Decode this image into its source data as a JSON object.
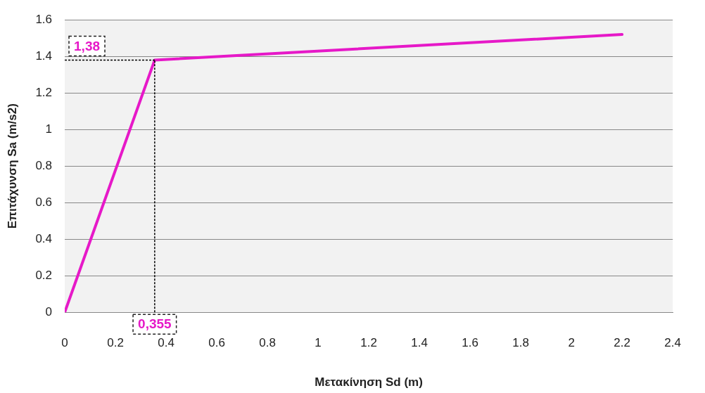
{
  "chart_data": {
    "type": "line",
    "xlabel": "Μετακίνηση Sd (m)",
    "ylabel": "Επιτάχυνση Sa (m/s2)",
    "x": [
      0,
      0.355,
      2.2
    ],
    "series": [
      {
        "color": "#e619c8",
        "values": [
          0,
          1.38,
          1.52
        ]
      }
    ],
    "ref_lines": [
      {
        "axis": "y",
        "value": 1.38,
        "color": "#000000",
        "line_style": "dotted"
      },
      {
        "axis": "x",
        "value": 0.355,
        "color": "#000000",
        "line_style": "dotted"
      }
    ],
    "xlim": [
      0,
      2.4
    ],
    "xticks": [
      0,
      0.2,
      0.4,
      0.6,
      0.8,
      1,
      1.2,
      1.4,
      1.6,
      1.8,
      2,
      2.2,
      2.4
    ],
    "ylim": [
      0,
      1.6
    ],
    "yticks": [
      0,
      0.2,
      0.4,
      0.6,
      0.8,
      1,
      1.2,
      1.4,
      1.6
    ],
    "grid": "y",
    "legend": false,
    "marker": "none",
    "line_style": "solid",
    "annotations": [
      "1,38",
      "0,355"
    ]
  }
}
